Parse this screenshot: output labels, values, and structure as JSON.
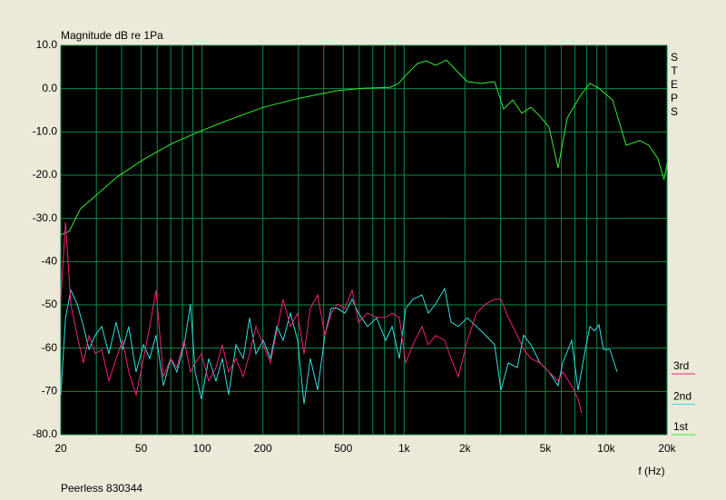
{
  "chart_data": {
    "type": "line",
    "title": "Magnitude dB re 1Pa",
    "side_label": "STEPS",
    "x_label": "f (Hz)",
    "footer": "Peerless 830344",
    "xscale": "log",
    "grid": true,
    "legend": "right",
    "xlim": [
      20,
      20000
    ],
    "ylim": [
      -80,
      10
    ],
    "xticks": [
      20,
      50,
      100,
      200,
      500,
      {
        "value": 1000,
        "label": "1k"
      },
      {
        "value": 2000,
        "label": "2k"
      },
      {
        "value": 5000,
        "label": "5k"
      },
      {
        "value": 10000,
        "label": "10k"
      },
      {
        "value": 20000,
        "label": "20k"
      }
    ],
    "xminor": [
      30,
      40,
      60,
      70,
      80,
      90,
      300,
      400,
      600,
      700,
      800,
      900,
      3000,
      4000,
      6000,
      7000,
      8000,
      9000
    ],
    "yticks": [
      {
        "value": 10,
        "label": "10.0"
      },
      {
        "value": 0,
        "label": "0.0"
      },
      {
        "value": -10,
        "label": "-10.0"
      },
      {
        "value": -20,
        "label": "-20.0"
      },
      {
        "value": -30,
        "label": "-30.0"
      },
      {
        "value": -40,
        "label": "-40"
      },
      {
        "value": -50,
        "label": "-50"
      },
      {
        "value": -60,
        "label": "-60"
      },
      {
        "value": -70,
        "label": "-70"
      },
      {
        "value": -80,
        "label": "-80.0"
      }
    ],
    "series": [
      {
        "name": "1st",
        "color": "#33ee33",
        "x": [
          20,
          22,
          25,
          31,
          38,
          52,
          71,
          97,
          133,
          201,
          304,
          459,
          626,
          853,
          941,
          1000,
          1164,
          1290,
          1431,
          1620,
          1853,
          2056,
          2401,
          2803,
          3109,
          3447,
          3823,
          4240,
          4701,
          5213,
          5780,
          6410,
          7490,
          8306,
          9210,
          10756,
          12561,
          14669,
          16265,
          18036,
          19330,
          20000
        ],
        "values": [
          -33.8,
          -33,
          -27.8,
          -24,
          -20.4,
          -16.2,
          -12.7,
          -9.9,
          -7.4,
          -4.3,
          -2.2,
          -0.5,
          0.1,
          0.3,
          1.2,
          2.7,
          5.8,
          6.4,
          5.4,
          6.6,
          3.7,
          1.6,
          1.2,
          1.6,
          -4.7,
          -2.6,
          -5.7,
          -4.3,
          -6.4,
          -8.9,
          -18.3,
          -6.8,
          -1.5,
          1.2,
          0.1,
          -2.6,
          -13.1,
          -12,
          -13.1,
          -16.2,
          -21,
          -17.3
        ]
      },
      {
        "name": "2nd",
        "color": "#33dddd",
        "x": [
          20,
          21.1,
          22.4,
          24.1,
          25.9,
          27.6,
          29.6,
          31.9,
          34.6,
          37.6,
          40.4,
          43.4,
          47.2,
          51.3,
          55.1,
          59.2,
          64.4,
          69.9,
          75.1,
          81.6,
          87.7,
          92.4,
          99.3,
          107.9,
          117.2,
          126,
          135.4,
          147.2,
          159.8,
          171.9,
          184.8,
          200.7,
          218,
          234.4,
          252,
          273.8,
          297.4,
          319.6,
          343.6,
          373.2,
          405.6,
          435.8,
          468.6,
          509,
          553,
          594.4,
          659,
          731,
          811,
          872,
          947,
          1018,
          1105,
          1226,
          1318,
          1432,
          1588,
          1707,
          1854,
          2056,
          2280,
          2528,
          2804,
          3014,
          3276,
          3632,
          3904,
          4242,
          4702,
          5216,
          5782,
          6090,
          6752,
          7262,
          7886,
          8304,
          8744,
          9208,
          9698,
          10424,
          11324
        ],
        "values": [
          -70.8,
          -53,
          -46.6,
          -49.8,
          -55,
          -60.3,
          -57,
          -55,
          -61.3,
          -54,
          -60.3,
          -55,
          -65.5,
          -59.2,
          -62.4,
          -57,
          -68.7,
          -62.4,
          -65.5,
          -59.2,
          -49.8,
          -65.5,
          -71.8,
          -62.4,
          -67.6,
          -62.4,
          -70.8,
          -59.2,
          -62.4,
          -53,
          -61.3,
          -58.2,
          -62.4,
          -55,
          -58.2,
          -51.9,
          -58.2,
          -72.9,
          -62.4,
          -69.7,
          -57,
          -50.8,
          -50.8,
          -51.9,
          -48.7,
          -51.9,
          -55,
          -53,
          -58.2,
          -55,
          -62.4,
          -50.8,
          -48.7,
          -47.7,
          -51.9,
          -49.8,
          -46.2,
          -54,
          -55,
          -53,
          -55,
          -57,
          -59.2,
          -69.7,
          -63.4,
          -64.5,
          -57,
          -59.2,
          -63.4,
          -65.5,
          -68.7,
          -63.4,
          -58.2,
          -69.7,
          -60.3,
          -55,
          -56,
          -54.6,
          -60.3,
          -60.3,
          -65.5
        ]
      },
      {
        "name": "3rd",
        "color": "#ee2277",
        "x": [
          20,
          21.1,
          22.4,
          24.1,
          25.9,
          27.6,
          29.6,
          31.9,
          34.6,
          37.6,
          40.4,
          43.4,
          47.2,
          51.3,
          55.1,
          59.2,
          64.4,
          69.9,
          75.1,
          81.6,
          87.7,
          92.4,
          99.3,
          107.9,
          117.2,
          126,
          135.4,
          147.2,
          159.8,
          171.9,
          184.8,
          200.7,
          218,
          234.4,
          252,
          273.8,
          297.4,
          319.6,
          343.6,
          373.2,
          405.6,
          435.8,
          468.6,
          509,
          553,
          594.4,
          659,
          731,
          811,
          872,
          947,
          1018,
          1105,
          1226,
          1318,
          1432,
          1588,
          1707,
          1854,
          2056,
          2280,
          2528,
          2804,
          3014,
          3276,
          3632,
          3904,
          4242,
          4702,
          5216,
          5782,
          6090,
          6752,
          7262,
          7568
        ],
        "values": [
          -48.7,
          -30.9,
          -49.8,
          -57.1,
          -63.4,
          -57.1,
          -61.3,
          -60.3,
          -67.6,
          -62.4,
          -58.2,
          -65.5,
          -70.8,
          -62.4,
          -55,
          -46.6,
          -66.6,
          -62.4,
          -64.5,
          -58.2,
          -65.5,
          -63.4,
          -61.3,
          -67.6,
          -64.5,
          -59.2,
          -65.5,
          -62.4,
          -66.6,
          -61.3,
          -55,
          -59.2,
          -63.4,
          -56.1,
          -48.7,
          -55,
          -51.9,
          -61.3,
          -50.8,
          -47.7,
          -57.1,
          -51.9,
          -49.8,
          -50.8,
          -46.6,
          -54,
          -51.9,
          -52.9,
          -52.9,
          -51.9,
          -52.9,
          -63.4,
          -59.2,
          -55,
          -59.2,
          -57.1,
          -58.2,
          -62.4,
          -66.6,
          -58.2,
          -51.9,
          -49.8,
          -48.7,
          -48.7,
          -52.9,
          -57.1,
          -60.3,
          -62.4,
          -63.4,
          -65.5,
          -67.6,
          -65.5,
          -68.7,
          -71.8,
          -75
        ]
      }
    ]
  }
}
